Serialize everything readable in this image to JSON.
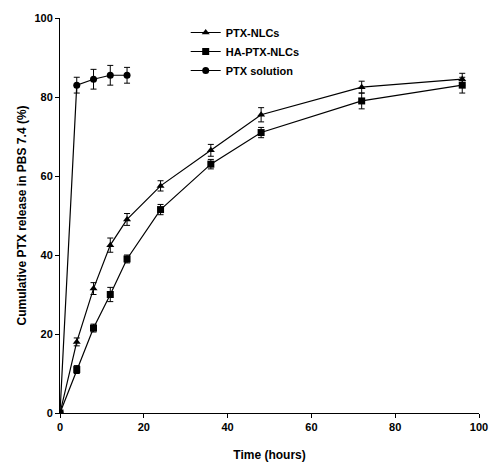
{
  "chart_data": {
    "type": "line",
    "x_label": "Time (hours)",
    "y_label": "Cumulative PTX release in PBS 7.4 (%)",
    "xlim": [
      0,
      100
    ],
    "xticks": [
      0,
      20,
      40,
      60,
      80,
      100
    ],
    "ylim": [
      0,
      100
    ],
    "yticks": [
      0,
      20,
      40,
      60,
      80,
      100
    ],
    "grid": false,
    "legend": "top",
    "series": [
      {
        "name": "PTX-NLCs",
        "color": "#000000",
        "marker": "triangle-up",
        "line_style": "solid",
        "x": [
          0,
          4,
          8,
          12,
          16,
          24,
          36,
          48,
          72,
          96
        ],
        "values": [
          0,
          18,
          31.5,
          42.5,
          49,
          57.5,
          66.5,
          75.5,
          82.5,
          84.5
        ],
        "error": [
          0,
          1,
          1.5,
          1.8,
          1.5,
          1.3,
          1.5,
          1.8,
          1.5,
          1.5
        ]
      },
      {
        "name": "HA-PTX-NLCs",
        "color": "#000000",
        "marker": "square",
        "line_style": "solid",
        "x": [
          0,
          4,
          8,
          12,
          16,
          24,
          36,
          48,
          72,
          96
        ],
        "values": [
          0,
          11,
          21.5,
          30,
          39,
          51.5,
          63,
          71,
          79,
          83
        ],
        "error": [
          0,
          1,
          1,
          1.8,
          1,
          1.3,
          1.2,
          1.3,
          2,
          2
        ]
      },
      {
        "name": "PTX solution",
        "color": "#000000",
        "marker": "circle",
        "line_style": "solid",
        "x": [
          0,
          4,
          8,
          12,
          16
        ],
        "values": [
          0,
          83,
          84.5,
          85.5,
          85.5
        ],
        "error": [
          0,
          2,
          2.5,
          2.5,
          2
        ]
      }
    ]
  }
}
